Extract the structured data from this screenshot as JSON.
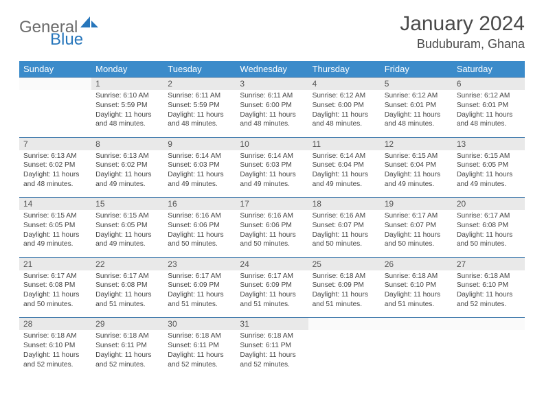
{
  "logo": {
    "part1": "General",
    "part2": "Blue"
  },
  "title": "January 2024",
  "location": "Buduburam, Ghana",
  "colors": {
    "header_bg": "#3b8bca",
    "header_text": "#ffffff",
    "daynum_bg": "#e9e9e9",
    "border": "#2e6da4",
    "text": "#444444",
    "logo_gray": "#6b6b6b",
    "logo_blue": "#2776bb"
  },
  "daysOfWeek": [
    "Sunday",
    "Monday",
    "Tuesday",
    "Wednesday",
    "Thursday",
    "Friday",
    "Saturday"
  ],
  "weeks": [
    [
      {
        "n": "",
        "lines": [
          "",
          "",
          "",
          ""
        ]
      },
      {
        "n": "1",
        "lines": [
          "Sunrise: 6:10 AM",
          "Sunset: 5:59 PM",
          "Daylight: 11 hours",
          "and 48 minutes."
        ]
      },
      {
        "n": "2",
        "lines": [
          "Sunrise: 6:11 AM",
          "Sunset: 5:59 PM",
          "Daylight: 11 hours",
          "and 48 minutes."
        ]
      },
      {
        "n": "3",
        "lines": [
          "Sunrise: 6:11 AM",
          "Sunset: 6:00 PM",
          "Daylight: 11 hours",
          "and 48 minutes."
        ]
      },
      {
        "n": "4",
        "lines": [
          "Sunrise: 6:12 AM",
          "Sunset: 6:00 PM",
          "Daylight: 11 hours",
          "and 48 minutes."
        ]
      },
      {
        "n": "5",
        "lines": [
          "Sunrise: 6:12 AM",
          "Sunset: 6:01 PM",
          "Daylight: 11 hours",
          "and 48 minutes."
        ]
      },
      {
        "n": "6",
        "lines": [
          "Sunrise: 6:12 AM",
          "Sunset: 6:01 PM",
          "Daylight: 11 hours",
          "and 48 minutes."
        ]
      }
    ],
    [
      {
        "n": "7",
        "lines": [
          "Sunrise: 6:13 AM",
          "Sunset: 6:02 PM",
          "Daylight: 11 hours",
          "and 48 minutes."
        ]
      },
      {
        "n": "8",
        "lines": [
          "Sunrise: 6:13 AM",
          "Sunset: 6:02 PM",
          "Daylight: 11 hours",
          "and 49 minutes."
        ]
      },
      {
        "n": "9",
        "lines": [
          "Sunrise: 6:14 AM",
          "Sunset: 6:03 PM",
          "Daylight: 11 hours",
          "and 49 minutes."
        ]
      },
      {
        "n": "10",
        "lines": [
          "Sunrise: 6:14 AM",
          "Sunset: 6:03 PM",
          "Daylight: 11 hours",
          "and 49 minutes."
        ]
      },
      {
        "n": "11",
        "lines": [
          "Sunrise: 6:14 AM",
          "Sunset: 6:04 PM",
          "Daylight: 11 hours",
          "and 49 minutes."
        ]
      },
      {
        "n": "12",
        "lines": [
          "Sunrise: 6:15 AM",
          "Sunset: 6:04 PM",
          "Daylight: 11 hours",
          "and 49 minutes."
        ]
      },
      {
        "n": "13",
        "lines": [
          "Sunrise: 6:15 AM",
          "Sunset: 6:05 PM",
          "Daylight: 11 hours",
          "and 49 minutes."
        ]
      }
    ],
    [
      {
        "n": "14",
        "lines": [
          "Sunrise: 6:15 AM",
          "Sunset: 6:05 PM",
          "Daylight: 11 hours",
          "and 49 minutes."
        ]
      },
      {
        "n": "15",
        "lines": [
          "Sunrise: 6:15 AM",
          "Sunset: 6:05 PM",
          "Daylight: 11 hours",
          "and 49 minutes."
        ]
      },
      {
        "n": "16",
        "lines": [
          "Sunrise: 6:16 AM",
          "Sunset: 6:06 PM",
          "Daylight: 11 hours",
          "and 50 minutes."
        ]
      },
      {
        "n": "17",
        "lines": [
          "Sunrise: 6:16 AM",
          "Sunset: 6:06 PM",
          "Daylight: 11 hours",
          "and 50 minutes."
        ]
      },
      {
        "n": "18",
        "lines": [
          "Sunrise: 6:16 AM",
          "Sunset: 6:07 PM",
          "Daylight: 11 hours",
          "and 50 minutes."
        ]
      },
      {
        "n": "19",
        "lines": [
          "Sunrise: 6:17 AM",
          "Sunset: 6:07 PM",
          "Daylight: 11 hours",
          "and 50 minutes."
        ]
      },
      {
        "n": "20",
        "lines": [
          "Sunrise: 6:17 AM",
          "Sunset: 6:08 PM",
          "Daylight: 11 hours",
          "and 50 minutes."
        ]
      }
    ],
    [
      {
        "n": "21",
        "lines": [
          "Sunrise: 6:17 AM",
          "Sunset: 6:08 PM",
          "Daylight: 11 hours",
          "and 50 minutes."
        ]
      },
      {
        "n": "22",
        "lines": [
          "Sunrise: 6:17 AM",
          "Sunset: 6:08 PM",
          "Daylight: 11 hours",
          "and 51 minutes."
        ]
      },
      {
        "n": "23",
        "lines": [
          "Sunrise: 6:17 AM",
          "Sunset: 6:09 PM",
          "Daylight: 11 hours",
          "and 51 minutes."
        ]
      },
      {
        "n": "24",
        "lines": [
          "Sunrise: 6:17 AM",
          "Sunset: 6:09 PM",
          "Daylight: 11 hours",
          "and 51 minutes."
        ]
      },
      {
        "n": "25",
        "lines": [
          "Sunrise: 6:18 AM",
          "Sunset: 6:09 PM",
          "Daylight: 11 hours",
          "and 51 minutes."
        ]
      },
      {
        "n": "26",
        "lines": [
          "Sunrise: 6:18 AM",
          "Sunset: 6:10 PM",
          "Daylight: 11 hours",
          "and 51 minutes."
        ]
      },
      {
        "n": "27",
        "lines": [
          "Sunrise: 6:18 AM",
          "Sunset: 6:10 PM",
          "Daylight: 11 hours",
          "and 52 minutes."
        ]
      }
    ],
    [
      {
        "n": "28",
        "lines": [
          "Sunrise: 6:18 AM",
          "Sunset: 6:10 PM",
          "Daylight: 11 hours",
          "and 52 minutes."
        ]
      },
      {
        "n": "29",
        "lines": [
          "Sunrise: 6:18 AM",
          "Sunset: 6:11 PM",
          "Daylight: 11 hours",
          "and 52 minutes."
        ]
      },
      {
        "n": "30",
        "lines": [
          "Sunrise: 6:18 AM",
          "Sunset: 6:11 PM",
          "Daylight: 11 hours",
          "and 52 minutes."
        ]
      },
      {
        "n": "31",
        "lines": [
          "Sunrise: 6:18 AM",
          "Sunset: 6:11 PM",
          "Daylight: 11 hours",
          "and 52 minutes."
        ]
      },
      {
        "n": "",
        "lines": [
          "",
          "",
          "",
          ""
        ]
      },
      {
        "n": "",
        "lines": [
          "",
          "",
          "",
          ""
        ]
      },
      {
        "n": "",
        "lines": [
          "",
          "",
          "",
          ""
        ]
      }
    ]
  ]
}
